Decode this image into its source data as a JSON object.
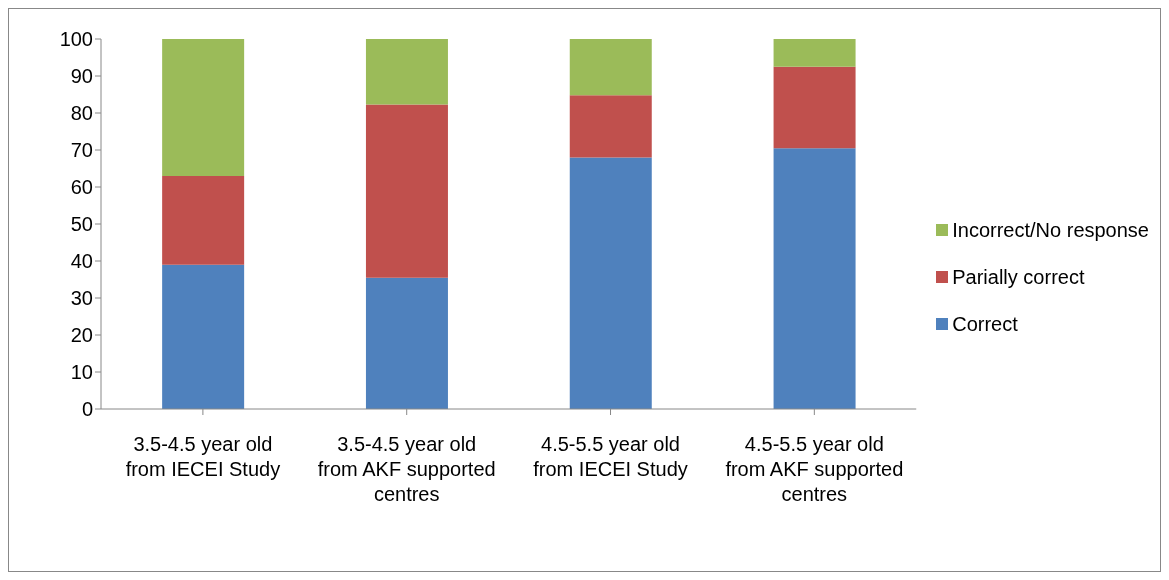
{
  "chart_data": {
    "type": "bar",
    "stacked": true,
    "categories": [
      "3.5-4.5 year old from IECEI Study",
      "3.5-4.5 year old from AKF supported centres",
      "4.5-5.5 year old from IECEI Study",
      "4.5-5.5 year old from AKF supported centres"
    ],
    "series": [
      {
        "name": "Correct",
        "color": "#4f81bd",
        "values": [
          39,
          35.5,
          68,
          70.5
        ]
      },
      {
        "name": "Parially correct",
        "color": "#c0504d",
        "values": [
          24,
          46.8,
          16.8,
          22
        ]
      },
      {
        "name": "Incorrect/No response",
        "color": "#9bbb59",
        "values": [
          37,
          17.7,
          15.2,
          7.5
        ]
      }
    ],
    "ylim": [
      0,
      100
    ],
    "yticks": [
      0,
      10,
      20,
      30,
      40,
      50,
      60,
      70,
      80,
      90,
      100
    ],
    "grid": false,
    "legend": "right"
  }
}
